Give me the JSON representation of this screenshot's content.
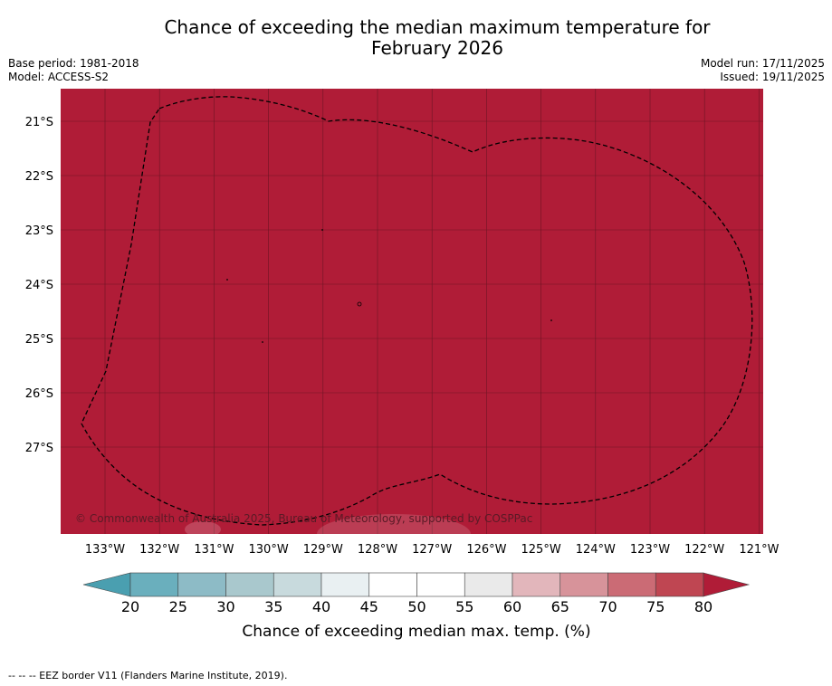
{
  "title": {
    "line1": "Chance of exceeding the median maximum temperature for",
    "line2": "February 2026"
  },
  "meta_left": {
    "base_period": "Base period: 1981-2018",
    "model": "Model: ACCESS-S2"
  },
  "meta_right": {
    "model_run": "Model run: 17/11/2025",
    "issued": "Issued: 19/11/2025"
  },
  "map": {
    "fill_color": "#b01c37",
    "lat_labels": [
      "21°S",
      "22°S",
      "23°S",
      "24°S",
      "25°S",
      "26°S",
      "27°S"
    ],
    "lon_labels": [
      "133°W",
      "132°W",
      "131°W",
      "130°W",
      "129°W",
      "128°W",
      "127°W",
      "126°W",
      "125°W",
      "124°W",
      "123°W",
      "122°W",
      "121°W"
    ],
    "copyright": "© Commonwealth of Australia 2025, Bureau of Meteorology, supported by COSPPac"
  },
  "colorbar": {
    "label": "Chance of exceeding median max. temp. (%)",
    "ticks": [
      "20",
      "25",
      "30",
      "35",
      "40",
      "45",
      "50",
      "55",
      "60",
      "65",
      "70",
      "75",
      "80"
    ],
    "low_color": "#4a9fb0",
    "high_color": "#b01c37",
    "colors": [
      "#6aafbd",
      "#8dbbc6",
      "#a9c8cd",
      "#c8dadd",
      "#e9f0f2",
      "#ffffff",
      "#ffffff",
      "#eaeaea",
      "#e2b6bb",
      "#d7939a",
      "#cb6b75",
      "#bf4652"
    ]
  },
  "footer": "--  --  -- EEZ border V11 (Flanders Marine Institute, 2019)."
}
